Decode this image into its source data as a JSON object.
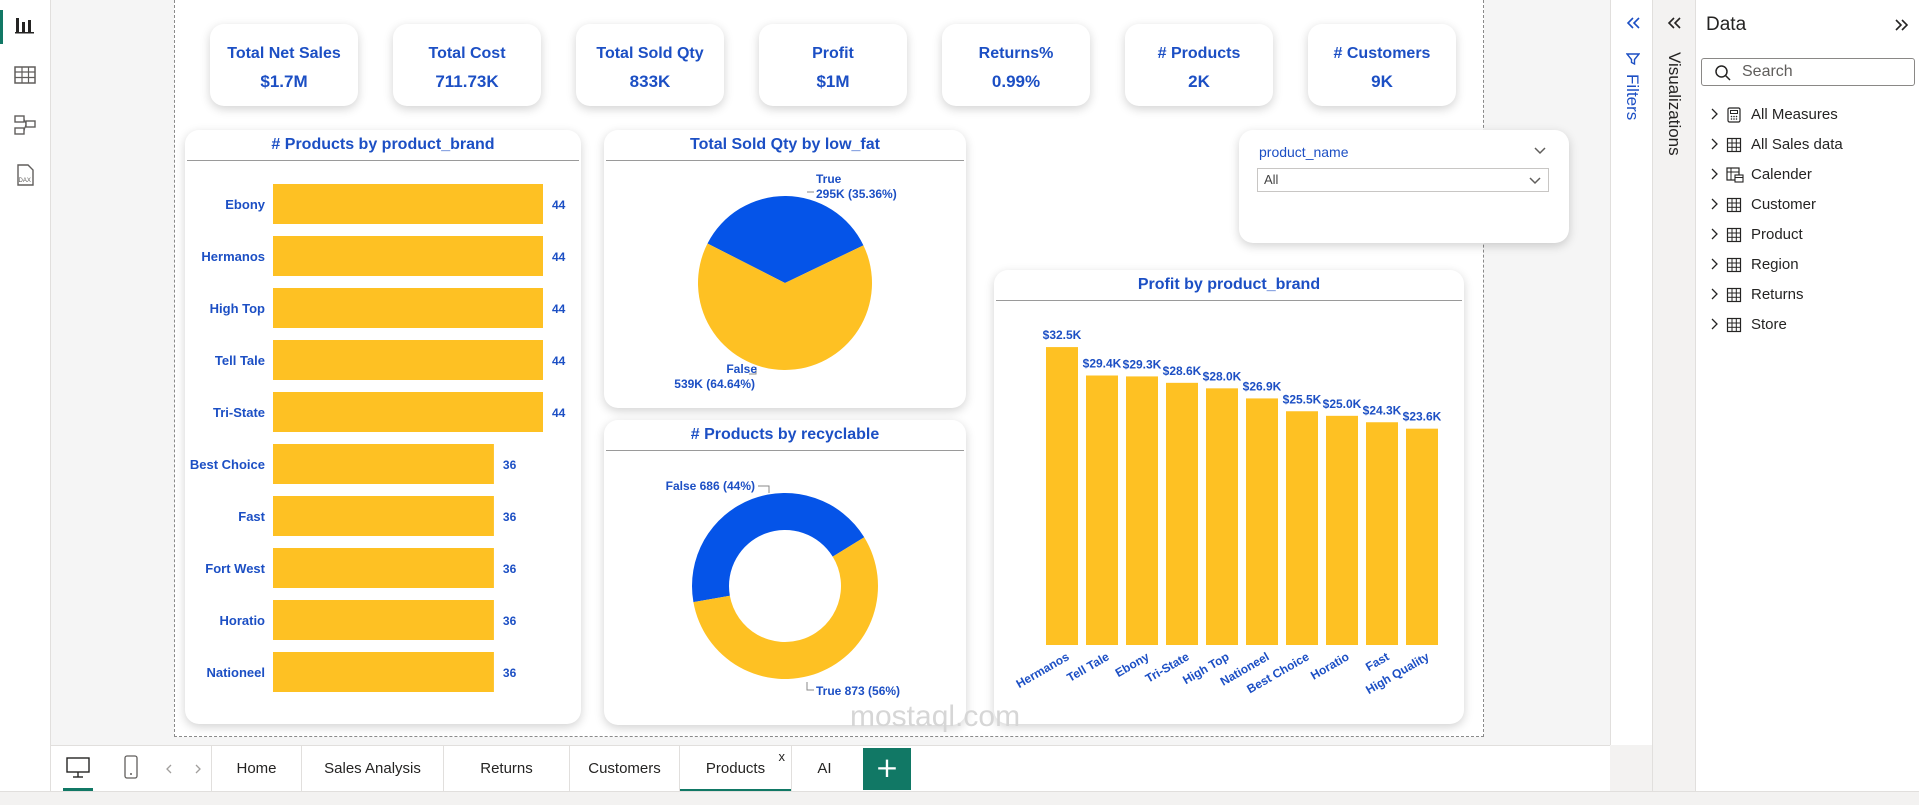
{
  "kpis": [
    {
      "title": "Total Net Sales",
      "value": "$1.7M"
    },
    {
      "title": "Total Cost",
      "value": "711.73K"
    },
    {
      "title": "Total Sold Qty",
      "value": "833K"
    },
    {
      "title": "Profit",
      "value": "$1M"
    },
    {
      "title": "Returns%",
      "value": "0.99%"
    },
    {
      "title": "# Products",
      "value": "2K"
    },
    {
      "title": "# Customers",
      "value": "9K"
    }
  ],
  "colors": {
    "primary_blue": "#1c4fc4",
    "series_blue": "#0554e8",
    "series_yellow": "#fec123",
    "accent_green": "#117865"
  },
  "slicer": {
    "label": "product_name",
    "value": "All"
  },
  "filters_pane": {
    "label": "Filters"
  },
  "visualizations_pane": {
    "label": "Visualizations"
  },
  "data_pane": {
    "title": "Data",
    "search_placeholder": "Search",
    "items": [
      {
        "label": "All Measures",
        "icon": "calculator-icon"
      },
      {
        "label": "All Sales data",
        "icon": "table-icon"
      },
      {
        "label": "Calender",
        "icon": "calendar-table-icon"
      },
      {
        "label": "Customer",
        "icon": "table-icon"
      },
      {
        "label": "Product",
        "icon": "table-icon"
      },
      {
        "label": "Region",
        "icon": "table-icon"
      },
      {
        "label": "Returns",
        "icon": "table-icon"
      },
      {
        "label": "Store",
        "icon": "table-icon"
      }
    ]
  },
  "tabs": [
    "Home",
    "Sales Analysis",
    "Returns",
    "Customers",
    "Products",
    "AI"
  ],
  "active_tab": "Products",
  "add_tab_label": "+",
  "close_tab_label": "x",
  "watermark": "mostaql.com",
  "chart_data": [
    {
      "type": "bar",
      "orientation": "horizontal",
      "title": "# Products by product_brand",
      "categories": [
        "Ebony",
        "Hermanos",
        "High Top",
        "Tell Tale",
        "Tri-State",
        "Best Choice",
        "Fast",
        "Fort West",
        "Horatio",
        "Nationeel"
      ],
      "values": [
        44,
        44,
        44,
        44,
        44,
        36,
        36,
        36,
        36,
        36
      ],
      "data_labels": [
        "44",
        "44",
        "44",
        "44",
        "44",
        "36",
        "36",
        "36",
        "36",
        "36"
      ],
      "color": "#fec123"
    },
    {
      "type": "pie",
      "title": "Total Sold Qty by low_fat",
      "slices": [
        {
          "label": "True",
          "value": 295,
          "percent": 35.36,
          "display": "295K (35.36%)",
          "color": "#0554e8"
        },
        {
          "label": "False",
          "value": 539,
          "percent": 64.64,
          "display": "539K (64.64%)",
          "color": "#fec123"
        }
      ]
    },
    {
      "type": "pie",
      "donut": true,
      "title": "# Products by recyclable",
      "slices": [
        {
          "label": "False",
          "value": 686,
          "percent": 44,
          "display": "False 686 (44%)",
          "color": "#0554e8"
        },
        {
          "label": "True",
          "value": 873,
          "percent": 56,
          "display": "True 873 (56%)",
          "color": "#fec123"
        }
      ]
    },
    {
      "type": "bar",
      "orientation": "vertical",
      "title": "Profit by product_brand",
      "categories": [
        "Hermanos",
        "Tell Tale",
        "Ebony",
        "Tri-State",
        "High Top",
        "Nationeel",
        "Best Choice",
        "Horatio",
        "Fast",
        "High Quality"
      ],
      "values": [
        32.5,
        29.4,
        29.3,
        28.6,
        28.0,
        26.9,
        25.5,
        25.0,
        24.3,
        23.6
      ],
      "data_labels": [
        "$32.5K",
        "$29.4K",
        "$29.3K",
        "$28.6K",
        "$28.0K",
        "$26.9K",
        "$25.5K",
        "$25.0K",
        "$24.3K",
        "$23.6K"
      ],
      "color": "#fec123"
    }
  ]
}
